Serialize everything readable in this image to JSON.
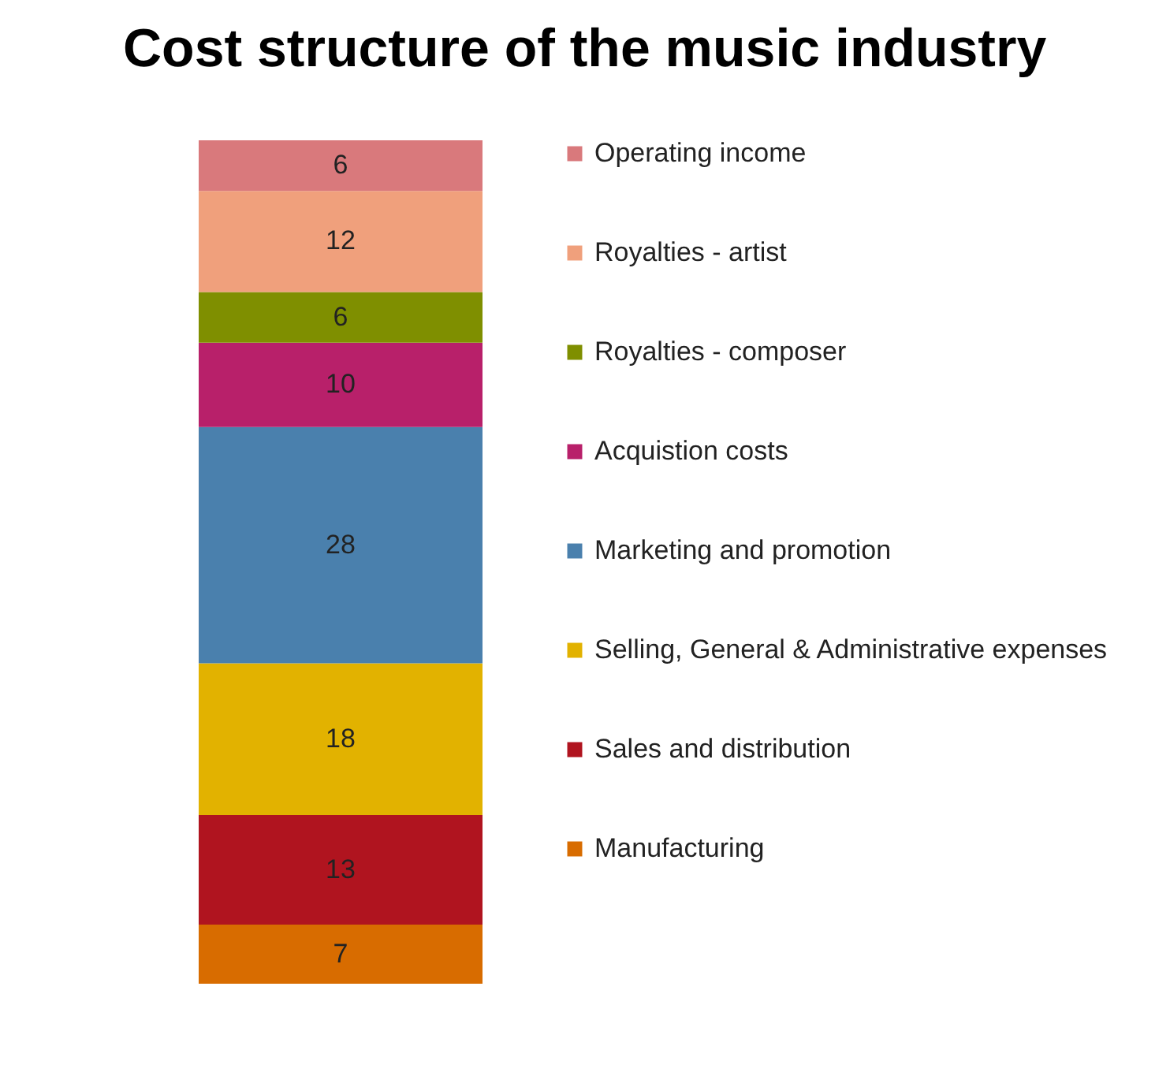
{
  "chart_data": {
    "type": "bar",
    "title": "Cost structure of the music industry",
    "stacked": true,
    "categories": [
      null
    ],
    "data_labels": true,
    "legend": "right",
    "tick_labels": false,
    "grid": false,
    "series": [
      {
        "name": "Manufacturing",
        "color": "#d86c00",
        "values": [
          7
        ]
      },
      {
        "name": "Sales and distribution",
        "color": "#b0141f",
        "values": [
          13
        ]
      },
      {
        "name": "Selling, General & Administrative expenses",
        "color": "#e2b200",
        "values": [
          18
        ]
      },
      {
        "name": "Marketing and promotion",
        "color": "#4a80ad",
        "values": [
          28
        ]
      },
      {
        "name": "Acquistion costs",
        "color": "#b8206a",
        "values": [
          10
        ]
      },
      {
        "name": "Royalties - composer",
        "color": "#7f8f00",
        "values": [
          6
        ]
      },
      {
        "name": "Royalties - artist",
        "color": "#f0a07c",
        "values": [
          12
        ]
      },
      {
        "name": "Operating income",
        "color": "#d9797c",
        "values": [
          6
        ]
      }
    ]
  }
}
